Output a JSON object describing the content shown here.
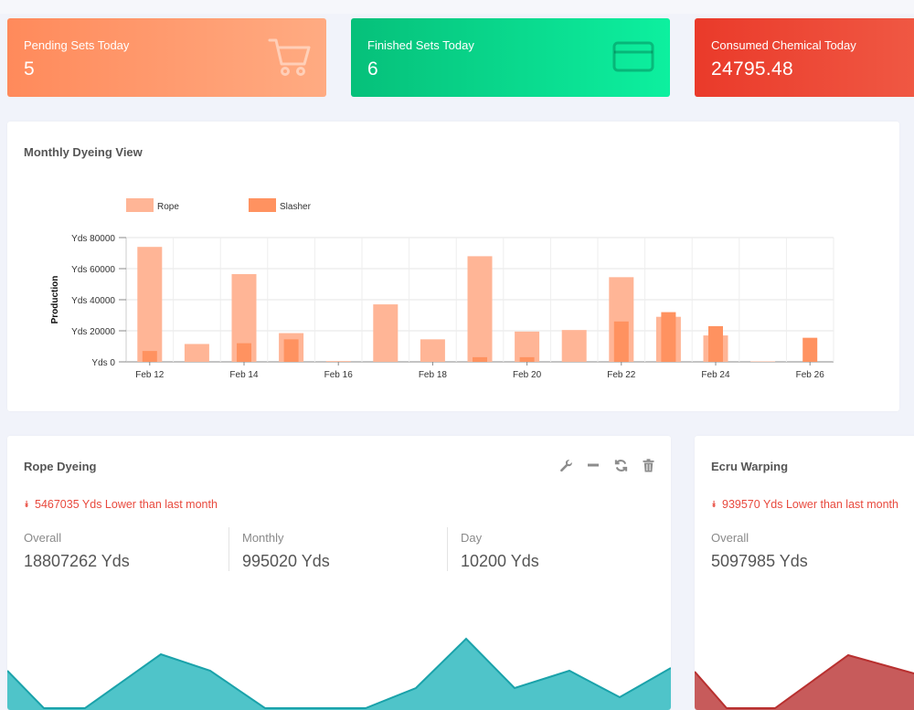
{
  "stats": {
    "pending": {
      "label": "Pending Sets Today",
      "value": "5",
      "icon": "shopping-cart-icon"
    },
    "finished": {
      "label": "Finished Sets Today",
      "value": "6",
      "icon": "credit-card-icon"
    },
    "chemical": {
      "label": "Consumed Chemical Today",
      "value": "24795.48"
    }
  },
  "chart_panel": {
    "title": "Monthly Dyeing View"
  },
  "chart_data": {
    "type": "bar",
    "title": "",
    "ylabel": "Production",
    "xlabel": "",
    "ylim": [
      0,
      80000
    ],
    "y_ticks": [
      "Yds 0",
      "Yds 20000",
      "Yds 40000",
      "Yds 60000",
      "Yds 80000"
    ],
    "x_tick_labels": [
      "Feb 12",
      "Feb 14",
      "Feb 16",
      "Feb 18",
      "Feb 20",
      "Feb 22",
      "Feb 24",
      "Feb 26"
    ],
    "categories": [
      "Feb 12",
      "Feb 13",
      "Feb 14",
      "Feb 15",
      "Feb 16",
      "Feb 17",
      "Feb 18",
      "Feb 19",
      "Feb 20",
      "Feb 21",
      "Feb 22",
      "Feb 23",
      "Feb 24",
      "Feb 25",
      "Feb 26"
    ],
    "legend_position": "top-left",
    "grid": true,
    "series": [
      {
        "name": "Rope",
        "color": "#ffb596",
        "values": [
          74000,
          11500,
          56500,
          18500,
          500,
          37000,
          14500,
          68000,
          19500,
          20500,
          54500,
          29000,
          17000,
          300,
          0
        ]
      },
      {
        "name": "Slasher",
        "color": "#ff9260",
        "values": [
          7000,
          0,
          12000,
          14500,
          0,
          0,
          0,
          3000,
          3000,
          0,
          26000,
          32000,
          23000,
          0,
          15500
        ]
      }
    ]
  },
  "rope_dyeing": {
    "title": "Rope Dyeing",
    "trend": "5467035 Yds Lower than last month",
    "metrics": [
      {
        "label": "Overall",
        "value": "18807262 Yds"
      },
      {
        "label": "Monthly",
        "value": "995020 Yds"
      },
      {
        "label": "Day",
        "value": "10200 Yds"
      }
    ],
    "tools": [
      "wrench-icon",
      "minus-icon",
      "refresh-icon",
      "trash-icon"
    ],
    "area_color": "#4fc4c9",
    "area_line_color": "#1aa2aa"
  },
  "ecru_warping": {
    "title": "Ecru Warping",
    "trend": "939570 Yds Lower than last month",
    "metrics": [
      {
        "label": "Overall",
        "value": "5097985 Yds"
      }
    ],
    "area_color": "#c75b5b",
    "area_line_color": "#b8302f"
  }
}
